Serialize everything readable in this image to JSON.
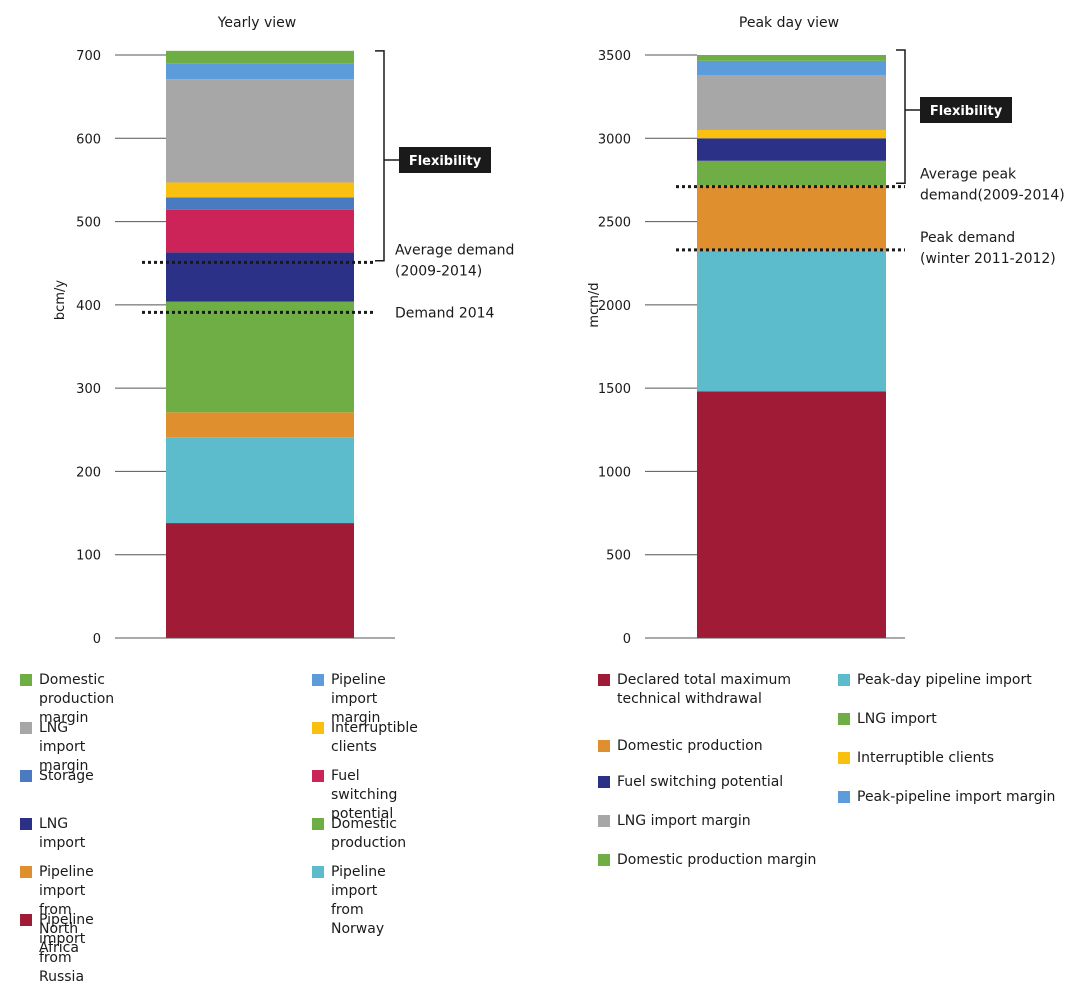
{
  "chart_data": [
    {
      "type": "bar",
      "title": "Yearly view",
      "ylabel": "bcm/y",
      "ylim": [
        0,
        700
      ],
      "yticks": [
        0,
        100,
        200,
        300,
        400,
        500,
        600,
        700
      ],
      "stacked": true,
      "series": [
        {
          "name": "Pipeline import from Russia",
          "value": 138,
          "color": "#A01C36"
        },
        {
          "name": "Pipeline import from Norway",
          "value": 103,
          "color": "#5DBCCC"
        },
        {
          "name": "Pipeline import from North Africa",
          "value": 30,
          "color": "#E08F2F"
        },
        {
          "name": "Domestic production",
          "value": 133,
          "color": "#6FAE45"
        },
        {
          "name": "LNG import",
          "value": 59,
          "color": "#2C3188"
        },
        {
          "name": "Fuel switching potential",
          "value": 51,
          "color": "#CC2459"
        },
        {
          "name": "Storage",
          "value": 15,
          "color": "#4A7BC0"
        },
        {
          "name": "Interruptible clients",
          "value": 18,
          "color": "#F9C00F"
        },
        {
          "name": "LNG import margin",
          "value": 124,
          "color": "#A7A7A7"
        },
        {
          "name": "Pipeline import margin",
          "value": 19,
          "color": "#5D9CDB"
        },
        {
          "name": "Domestic production margin",
          "value": 15,
          "color": "#6FAE45"
        }
      ],
      "reference_lines": [
        {
          "label_lines": [
            "Average demand",
            "(2009-2014)"
          ],
          "value": 451
        },
        {
          "label_lines": [
            "Demand 2014"
          ],
          "value": 391
        }
      ],
      "flexibility": {
        "label": "Flexibility",
        "from": 453,
        "to": 705
      }
    },
    {
      "type": "bar",
      "title": "Peak day view",
      "ylabel": "mcm/d",
      "ylim": [
        0,
        3500
      ],
      "yticks": [
        0,
        500,
        1000,
        1500,
        2000,
        2500,
        3000,
        3500
      ],
      "stacked": true,
      "series": [
        {
          "name": "Declared total maximum technical withdrawal",
          "value": 1480,
          "color": "#A01C36"
        },
        {
          "name": "Peak-day pipeline import",
          "value": 845,
          "color": "#5DBCCC"
        },
        {
          "name": "Domestic production",
          "value": 390,
          "color": "#E08F2F"
        },
        {
          "name": "LNG import",
          "value": 150,
          "color": "#6FAE45"
        },
        {
          "name": "Fuel switching potential",
          "value": 135,
          "color": "#2C3188"
        },
        {
          "name": "Interruptible clients",
          "value": 50,
          "color": "#F9C00F"
        },
        {
          "name": "LNG import margin",
          "value": 330,
          "color": "#A7A7A7"
        },
        {
          "name": "Peak-pipeline import margin",
          "value": 85,
          "color": "#5D9CDB"
        },
        {
          "name": "Domestic production margin",
          "value": 35,
          "color": "#6FAE45"
        }
      ],
      "reference_lines": [
        {
          "label_lines": [
            "Average peak",
            "demand(2009-2014)"
          ],
          "value": 2710
        },
        {
          "label_lines": [
            "Peak demand",
            "(winter 2011-2012)"
          ],
          "value": 2330
        }
      ],
      "flexibility": {
        "label": "Flexibility",
        "from": 2730,
        "to": 3530
      }
    }
  ],
  "legends": {
    "left": [
      {
        "label": "Domestic production margin",
        "color": "#6FAE45"
      },
      {
        "label": "Pipeline import margin",
        "color": "#5D9CDB"
      },
      {
        "label": "LNG import margin",
        "color": "#A7A7A7"
      },
      {
        "label": "Interruptible clients",
        "color": "#F9C00F"
      },
      {
        "label": "Storage",
        "color": "#4A7BC0"
      },
      {
        "label": "Fuel switching potential",
        "color": "#CC2459"
      },
      {
        "label": "LNG import",
        "color": "#2C3188"
      },
      {
        "label": "Domestic production",
        "color": "#6FAE45"
      },
      {
        "label": "Pipeline import from North Africa",
        "color": "#E08F2F"
      },
      {
        "label": "Pipeline import from Norway",
        "color": "#5DBCCC"
      },
      {
        "label": "Pipeline import from Russia",
        "color": "#A01C36"
      }
    ],
    "right_col1": [
      {
        "label": "Declared total maximum technical withdrawal",
        "color": "#A01C36"
      },
      {
        "label": "Domestic production",
        "color": "#E08F2F"
      },
      {
        "label": "Fuel switching potential",
        "color": "#2C3188"
      },
      {
        "label": "LNG import margin",
        "color": "#A7A7A7"
      },
      {
        "label": "Domestic production margin",
        "color": "#6FAE45"
      }
    ],
    "right_col2": [
      {
        "label": "Peak-day pipeline import",
        "color": "#5DBCCC"
      },
      {
        "label": "LNG import",
        "color": "#6FAE45"
      },
      {
        "label": "Interruptible clients",
        "color": "#F9C00F"
      },
      {
        "label": "Peak-pipeline import margin",
        "color": "#5D9CDB"
      }
    ]
  }
}
